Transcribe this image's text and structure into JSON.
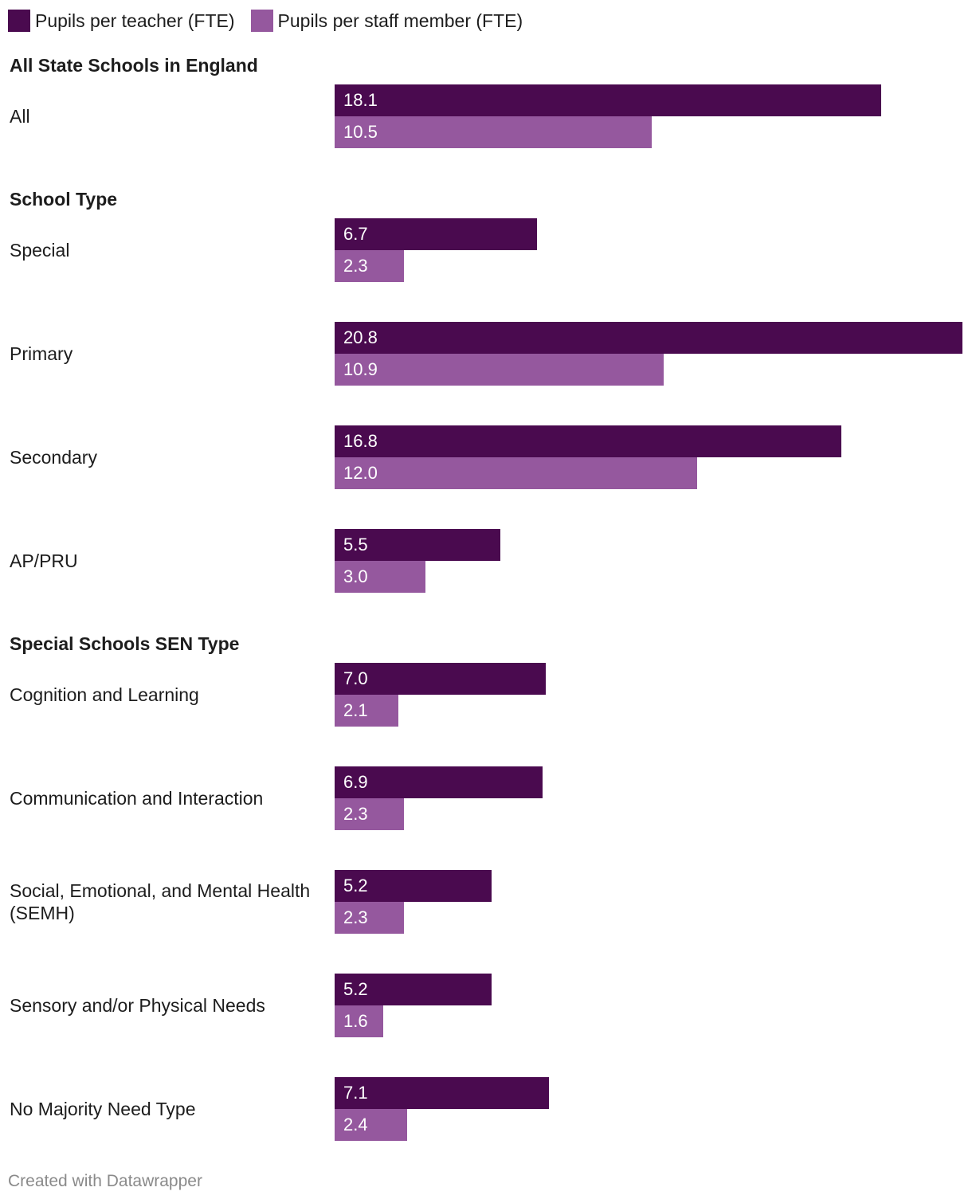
{
  "chart_data": {
    "type": "bar",
    "orientation": "horizontal",
    "series": [
      {
        "name": "Pupils per teacher (FTE)",
        "color": "#4a0a4f"
      },
      {
        "name": "Pupils per staff member (FTE)",
        "color": "#95589e"
      }
    ],
    "groups": [
      {
        "title": "All State Schools in England",
        "rows": [
          {
            "label": "All",
            "values": [
              18.1,
              10.5
            ],
            "labels": [
              "18.1",
              "10.5"
            ]
          }
        ]
      },
      {
        "title": "School Type",
        "rows": [
          {
            "label": "Special",
            "values": [
              6.7,
              2.3
            ],
            "labels": [
              "6.7",
              "2.3"
            ]
          },
          {
            "label": "Primary",
            "values": [
              20.8,
              10.9
            ],
            "labels": [
              "20.8",
              "10.9"
            ]
          },
          {
            "label": "Secondary",
            "values": [
              16.8,
              12.0
            ],
            "labels": [
              "16.8",
              "12.0"
            ]
          },
          {
            "label": "AP/PRU",
            "values": [
              5.5,
              3.0
            ],
            "labels": [
              "5.5",
              "3.0"
            ]
          }
        ]
      },
      {
        "title": "Special Schools SEN Type",
        "rows": [
          {
            "label": "Cognition and Learning",
            "values": [
              7.0,
              2.1
            ],
            "labels": [
              "7.0",
              "2.1"
            ]
          },
          {
            "label": "Communication and Interaction",
            "values": [
              6.9,
              2.3
            ],
            "labels": [
              "6.9",
              "2.3"
            ]
          },
          {
            "label": "Social, Emotional, and Mental Health (SEMH)",
            "values": [
              5.2,
              2.3
            ],
            "labels": [
              "5.2",
              "2.3"
            ]
          },
          {
            "label": "Sensory and/or Physical Needs",
            "values": [
              5.2,
              1.6
            ],
            "labels": [
              "5.2",
              "1.6"
            ]
          },
          {
            "label": "No Majority Need Type",
            "values": [
              7.1,
              2.4
            ],
            "labels": [
              "7.1",
              "2.4"
            ]
          }
        ]
      }
    ],
    "xlim": [
      0,
      20.8
    ],
    "grid": false,
    "legend": "top-left"
  },
  "footer": {
    "credit": "Created with Datawrapper"
  }
}
